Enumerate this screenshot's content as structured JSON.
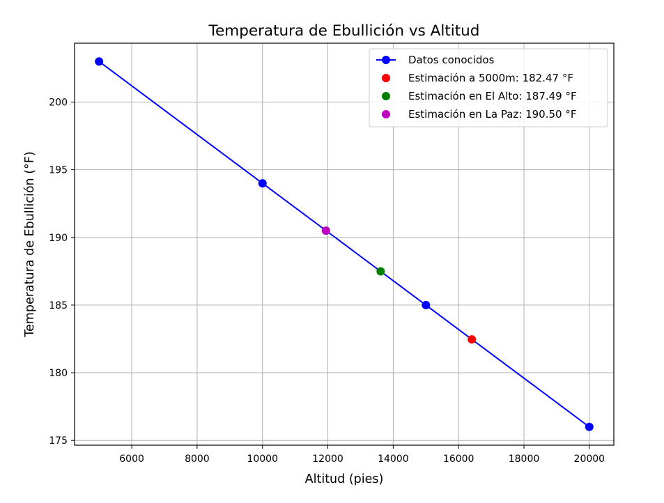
{
  "chart_data": {
    "type": "line",
    "title": "Temperatura de Ebullición vs Altitud",
    "xlabel": "Altitud (pies)",
    "ylabel": "Temperatura de Ebullición (°F)",
    "xlim": [
      4250,
      20750
    ],
    "ylim": [
      174.65,
      204.35
    ],
    "xticks": [
      6000,
      8000,
      10000,
      12000,
      14000,
      16000,
      18000,
      20000
    ],
    "yticks": [
      175,
      180,
      185,
      190,
      195,
      200
    ],
    "grid": true,
    "legend_position": "top-right",
    "series": [
      {
        "name": "Datos conocidos",
        "kind": "line-marker",
        "color": "#0000ff",
        "x": [
          5000,
          10000,
          15000,
          20000
        ],
        "y": [
          203,
          194,
          185,
          176
        ]
      },
      {
        "name": "Estimación a 5000m: 182.47 °F",
        "kind": "marker",
        "color": "#ff0000",
        "x": [
          16404.2
        ],
        "y": [
          182.47
        ]
      },
      {
        "name": "Estimación en El Alto: 187.49 °F",
        "kind": "marker",
        "color": "#008000",
        "x": [
          13615.5
        ],
        "y": [
          187.49
        ]
      },
      {
        "name": "Estimación en La Paz: 190.50 °F",
        "kind": "marker",
        "color": "#bf00bf",
        "x": [
          11942
        ],
        "y": [
          190.5
        ]
      }
    ]
  }
}
